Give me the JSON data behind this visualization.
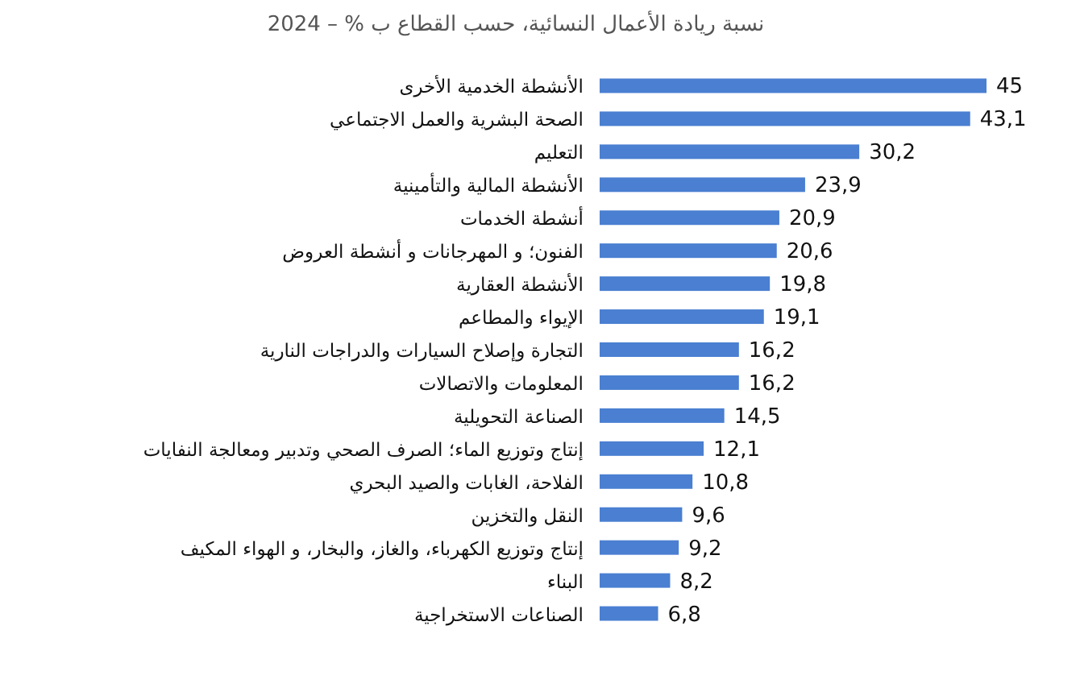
{
  "chart_data": {
    "type": "bar",
    "orientation": "horizontal",
    "title": "نسبة ريادة الأعمال النسائية، حسب القطاع ب % – 2024",
    "categories": [
      "الأنشطة الخدمية الأخرى",
      "الصحة البشرية والعمل الاجتماعي",
      "التعليم",
      "الأنشطة المالية والتأمينية",
      "أنشطة الخدمات",
      "الفنون؛ و المهرجانات و أنشطة العروض",
      "الأنشطة العقارية",
      "الإيواء والمطاعم",
      "التجارة وإصلاح السيارات والدراجات النارية",
      "المعلومات والاتصالات",
      "الصناعة التحويلية",
      "إنتاج وتوزيع الماء؛ الصرف الصحي وتدبير ومعالجة النفايات",
      "الفلاحة، الغابات والصيد البحري",
      "النقل والتخزين",
      "إنتاج وتوزيع الكهرباء، والغاز، والبخار، و الهواء المكيف",
      "البناء",
      "الصناعات الاستخراجية"
    ],
    "values": [
      45,
      43.1,
      30.2,
      23.9,
      20.9,
      20.6,
      19.8,
      19.1,
      16.2,
      16.2,
      14.5,
      12.1,
      10.8,
      9.6,
      9.2,
      8.2,
      6.8
    ],
    "value_labels": [
      "45",
      "43,1",
      "30,2",
      "23,9",
      "20,9",
      "20,6",
      "19,8",
      "19,1",
      "16,2",
      "16,2",
      "14,5",
      "12,1",
      "10,8",
      "9,6",
      "9,2",
      "8,2",
      "6,8"
    ],
    "color": "#4a7fd1"
  }
}
